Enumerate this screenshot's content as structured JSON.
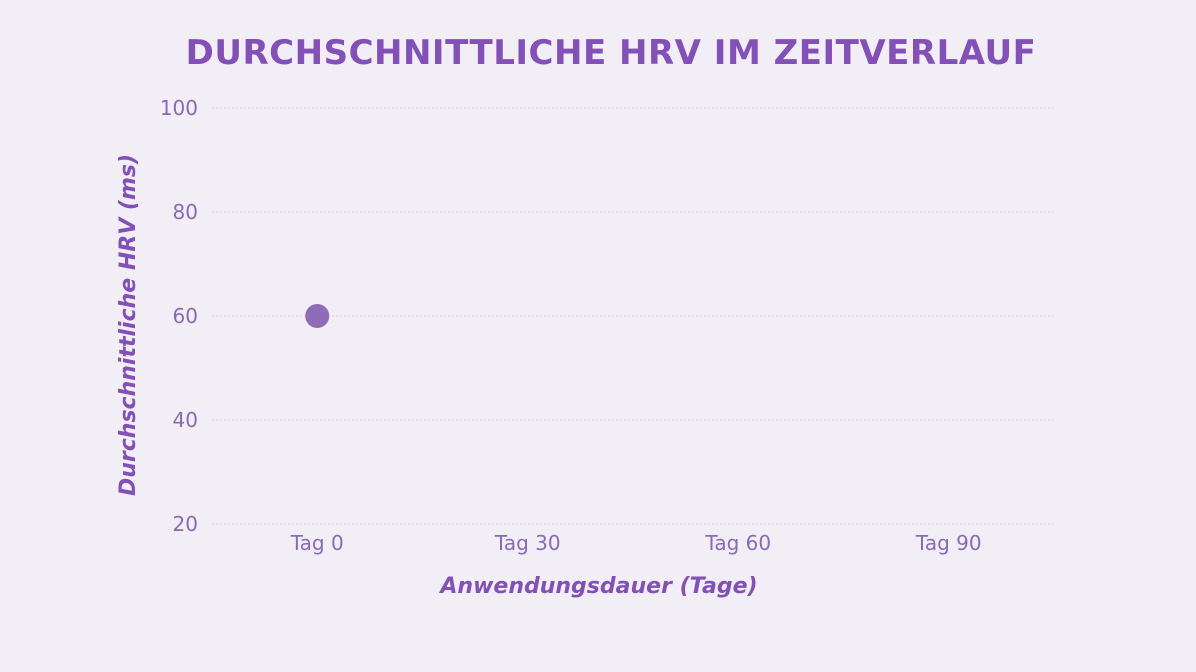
{
  "chart_data": {
    "type": "scatter",
    "title": "DURCHSCHNITTLICHE HRV IM ZEITVERLAUF",
    "xlabel": "Anwendungsdauer (Tage)",
    "ylabel": "Durchschnittliche HRV (ms)",
    "categories": [
      "Tag 0",
      "Tag 30",
      "Tag 60",
      "Tag 90"
    ],
    "x": [
      "Tag 0"
    ],
    "y": [
      60
    ],
    "ylim": [
      20,
      100
    ],
    "yticks": [
      20,
      40,
      60,
      80,
      100
    ],
    "grid": true,
    "legend": "none",
    "colors": {
      "background": "#f1eef6",
      "title": "#8250b8",
      "tick": "#8a6ab8",
      "grid": "#d9cdea",
      "point": "#8f6cb8"
    }
  }
}
